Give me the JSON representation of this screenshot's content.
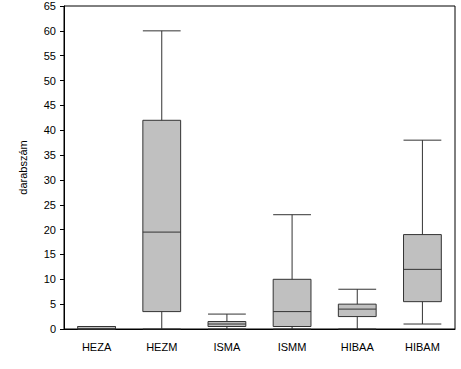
{
  "chart_data": {
    "type": "boxplot",
    "y_label": "darabszám",
    "categories": [
      "HEZA",
      "HEZM",
      "ISMA",
      "ISMM",
      "HIBAA",
      "HIBAM"
    ],
    "values": [
      [
        0,
        0,
        0,
        0.5,
        0.5
      ],
      [
        0,
        3.5,
        19.5,
        42,
        60
      ],
      [
        0,
        0.5,
        1,
        1.5,
        3
      ],
      [
        0,
        0.5,
        3.5,
        10,
        23
      ],
      [
        0,
        2.5,
        4,
        5,
        8
      ],
      [
        1,
        5.5,
        12,
        19,
        38
      ]
    ],
    "color": "#c0c0c0",
    "ylim": [
      0,
      65
    ],
    "yticks": [
      0,
      5,
      10,
      15,
      20,
      25,
      30,
      35,
      40,
      45,
      50,
      55,
      60,
      65
    ],
    "grid": false
  }
}
